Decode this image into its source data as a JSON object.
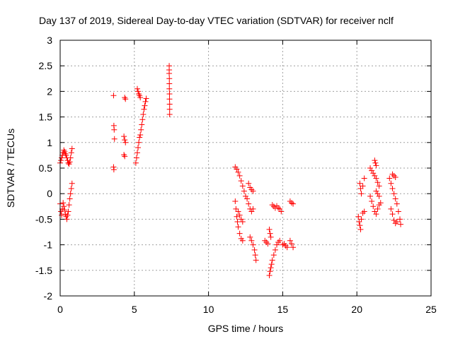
{
  "chart_data": {
    "type": "scatter",
    "title": "Day 137 of 2019, Sidereal Day-to-day VTEC variation (SDTVAR) for receiver nclf",
    "xlabel": "GPS time / hours",
    "ylabel": "SDTVAR / TECUs",
    "xlim": [
      0,
      25
    ],
    "ylim": [
      -2,
      3
    ],
    "xticks": [
      "0",
      "5",
      "10",
      "15",
      "20",
      "25"
    ],
    "yticks": [
      "-2",
      "-1.5",
      "-1",
      "-0.5",
      "0",
      "0.5",
      "1",
      "1.5",
      "2",
      "2.5",
      "3"
    ],
    "grid": true,
    "marker": "+",
    "colors": {
      "marker": "#ff0000",
      "grid": "#a0a0a0",
      "axis": "#000000"
    },
    "points": [
      [
        0.0,
        0.6
      ],
      [
        0.05,
        0.65
      ],
      [
        0.1,
        0.7
      ],
      [
        0.15,
        0.75
      ],
      [
        0.2,
        0.8
      ],
      [
        0.25,
        0.85
      ],
      [
        0.3,
        0.82
      ],
      [
        0.35,
        0.78
      ],
      [
        0.4,
        0.75
      ],
      [
        0.45,
        0.7
      ],
      [
        0.5,
        0.65
      ],
      [
        0.55,
        0.6
      ],
      [
        0.6,
        0.58
      ],
      [
        0.65,
        0.62
      ],
      [
        0.7,
        0.7
      ],
      [
        0.75,
        0.8
      ],
      [
        0.8,
        0.88
      ],
      [
        0.0,
        -0.2
      ],
      [
        0.05,
        -0.35
      ],
      [
        0.1,
        -0.42
      ],
      [
        0.15,
        -0.3
      ],
      [
        0.2,
        -0.18
      ],
      [
        0.25,
        -0.25
      ],
      [
        0.3,
        -0.32
      ],
      [
        0.35,
        -0.4
      ],
      [
        0.4,
        -0.45
      ],
      [
        0.45,
        -0.5
      ],
      [
        0.5,
        -0.42
      ],
      [
        0.55,
        -0.35
      ],
      [
        0.6,
        -0.22
      ],
      [
        0.65,
        -0.1
      ],
      [
        0.7,
        0.0
      ],
      [
        0.75,
        0.1
      ],
      [
        0.8,
        0.2
      ],
      [
        3.6,
        1.92
      ],
      [
        3.62,
        1.33
      ],
      [
        3.64,
        1.25
      ],
      [
        3.66,
        1.07
      ],
      [
        3.6,
        0.52
      ],
      [
        3.62,
        0.47
      ],
      [
        4.35,
        1.88
      ],
      [
        4.4,
        1.85
      ],
      [
        4.3,
        1.12
      ],
      [
        4.35,
        1.05
      ],
      [
        4.4,
        1.0
      ],
      [
        4.3,
        0.76
      ],
      [
        4.35,
        0.73
      ],
      [
        5.2,
        2.05
      ],
      [
        5.25,
        2.0
      ],
      [
        5.3,
        1.95
      ],
      [
        5.35,
        1.92
      ],
      [
        5.4,
        1.88
      ],
      [
        5.1,
        0.6
      ],
      [
        5.15,
        0.7
      ],
      [
        5.2,
        0.8
      ],
      [
        5.25,
        0.9
      ],
      [
        5.3,
        1.0
      ],
      [
        5.35,
        1.1
      ],
      [
        5.4,
        1.15
      ],
      [
        5.45,
        1.25
      ],
      [
        5.5,
        1.35
      ],
      [
        5.55,
        1.45
      ],
      [
        5.6,
        1.55
      ],
      [
        5.65,
        1.65
      ],
      [
        5.7,
        1.72
      ],
      [
        5.75,
        1.8
      ],
      [
        5.8,
        1.86
      ],
      [
        7.35,
        2.5
      ],
      [
        7.35,
        2.42
      ],
      [
        7.35,
        2.35
      ],
      [
        7.36,
        2.25
      ],
      [
        7.36,
        2.15
      ],
      [
        7.36,
        2.05
      ],
      [
        7.37,
        1.95
      ],
      [
        7.37,
        1.85
      ],
      [
        7.38,
        1.75
      ],
      [
        7.38,
        1.65
      ],
      [
        7.38,
        1.55
      ],
      [
        11.8,
        0.52
      ],
      [
        11.9,
        0.48
      ],
      [
        12.0,
        0.42
      ],
      [
        12.1,
        0.35
      ],
      [
        12.2,
        0.25
      ],
      [
        12.3,
        0.15
      ],
      [
        12.4,
        0.05
      ],
      [
        12.5,
        -0.05
      ],
      [
        11.8,
        -0.15
      ],
      [
        11.85,
        -0.3
      ],
      [
        11.9,
        -0.45
      ],
      [
        11.95,
        -0.55
      ],
      [
        12.0,
        -0.65
      ],
      [
        12.1,
        -0.78
      ],
      [
        12.2,
        -0.88
      ],
      [
        12.3,
        -0.92
      ],
      [
        12.0,
        -0.35
      ],
      [
        12.1,
        -0.42
      ],
      [
        12.2,
        -0.5
      ],
      [
        12.3,
        -0.55
      ],
      [
        12.6,
        -0.1
      ],
      [
        12.7,
        -0.2
      ],
      [
        12.8,
        -0.3
      ],
      [
        12.9,
        -0.35
      ],
      [
        13.0,
        -0.3
      ],
      [
        12.8,
        -0.85
      ],
      [
        12.9,
        -0.92
      ],
      [
        13.0,
        -1.0
      ],
      [
        13.1,
        -1.1
      ],
      [
        13.15,
        -1.2
      ],
      [
        13.2,
        -1.3
      ],
      [
        12.7,
        0.2
      ],
      [
        12.8,
        0.12
      ],
      [
        12.9,
        0.08
      ],
      [
        13.0,
        0.05
      ],
      [
        13.8,
        -0.92
      ],
      [
        13.9,
        -0.95
      ],
      [
        14.0,
        -0.98
      ],
      [
        14.1,
        -1.6
      ],
      [
        14.15,
        -1.52
      ],
      [
        14.2,
        -1.45
      ],
      [
        14.25,
        -1.38
      ],
      [
        14.3,
        -1.3
      ],
      [
        14.4,
        -1.2
      ],
      [
        14.5,
        -1.1
      ],
      [
        14.6,
        -1.0
      ],
      [
        14.7,
        -0.95
      ],
      [
        14.8,
        -0.92
      ],
      [
        14.1,
        -0.7
      ],
      [
        14.15,
        -0.78
      ],
      [
        14.2,
        -0.85
      ],
      [
        14.3,
        -0.22
      ],
      [
        14.4,
        -0.25
      ],
      [
        14.5,
        -0.28
      ],
      [
        14.6,
        -0.24
      ],
      [
        14.7,
        -0.28
      ],
      [
        14.8,
        -0.3
      ],
      [
        14.9,
        -0.35
      ],
      [
        15.0,
        -1.0
      ],
      [
        15.1,
        -0.98
      ],
      [
        15.2,
        -1.02
      ],
      [
        15.3,
        -1.05
      ],
      [
        15.5,
        -0.92
      ],
      [
        15.6,
        -0.98
      ],
      [
        15.7,
        -1.05
      ],
      [
        15.5,
        -0.15
      ],
      [
        15.6,
        -0.18
      ],
      [
        15.7,
        -0.2
      ],
      [
        20.1,
        -0.45
      ],
      [
        20.15,
        -0.55
      ],
      [
        20.2,
        -0.62
      ],
      [
        20.25,
        -0.7
      ],
      [
        20.3,
        -0.5
      ],
      [
        20.4,
        -0.38
      ],
      [
        20.5,
        -0.35
      ],
      [
        20.2,
        0.2
      ],
      [
        20.25,
        0.1
      ],
      [
        20.3,
        0.0
      ],
      [
        20.4,
        0.15
      ],
      [
        20.5,
        0.3
      ],
      [
        20.9,
        0.5
      ],
      [
        21.0,
        0.45
      ],
      [
        21.1,
        0.4
      ],
      [
        21.2,
        0.35
      ],
      [
        21.3,
        0.3
      ],
      [
        21.4,
        0.22
      ],
      [
        21.5,
        0.15
      ],
      [
        21.2,
        0.65
      ],
      [
        21.25,
        0.6
      ],
      [
        21.3,
        0.55
      ],
      [
        20.9,
        -0.05
      ],
      [
        21.0,
        -0.15
      ],
      [
        21.1,
        -0.25
      ],
      [
        21.2,
        -0.35
      ],
      [
        21.3,
        -0.4
      ],
      [
        21.4,
        -0.3
      ],
      [
        21.5,
        -0.22
      ],
      [
        21.6,
        -0.18
      ],
      [
        21.3,
        0.05
      ],
      [
        21.4,
        0.0
      ],
      [
        21.5,
        -0.05
      ],
      [
        22.2,
        0.3
      ],
      [
        22.3,
        0.2
      ],
      [
        22.4,
        0.1
      ],
      [
        22.5,
        0.0
      ],
      [
        22.6,
        -0.1
      ],
      [
        22.7,
        -0.2
      ],
      [
        22.8,
        -0.35
      ],
      [
        22.9,
        -0.5
      ],
      [
        22.95,
        -0.6
      ],
      [
        22.3,
        -0.3
      ],
      [
        22.4,
        -0.4
      ],
      [
        22.5,
        -0.52
      ],
      [
        22.6,
        -0.58
      ],
      [
        22.7,
        -0.55
      ],
      [
        22.4,
        0.38
      ],
      [
        22.5,
        0.35
      ],
      [
        22.6,
        0.32
      ]
    ]
  }
}
